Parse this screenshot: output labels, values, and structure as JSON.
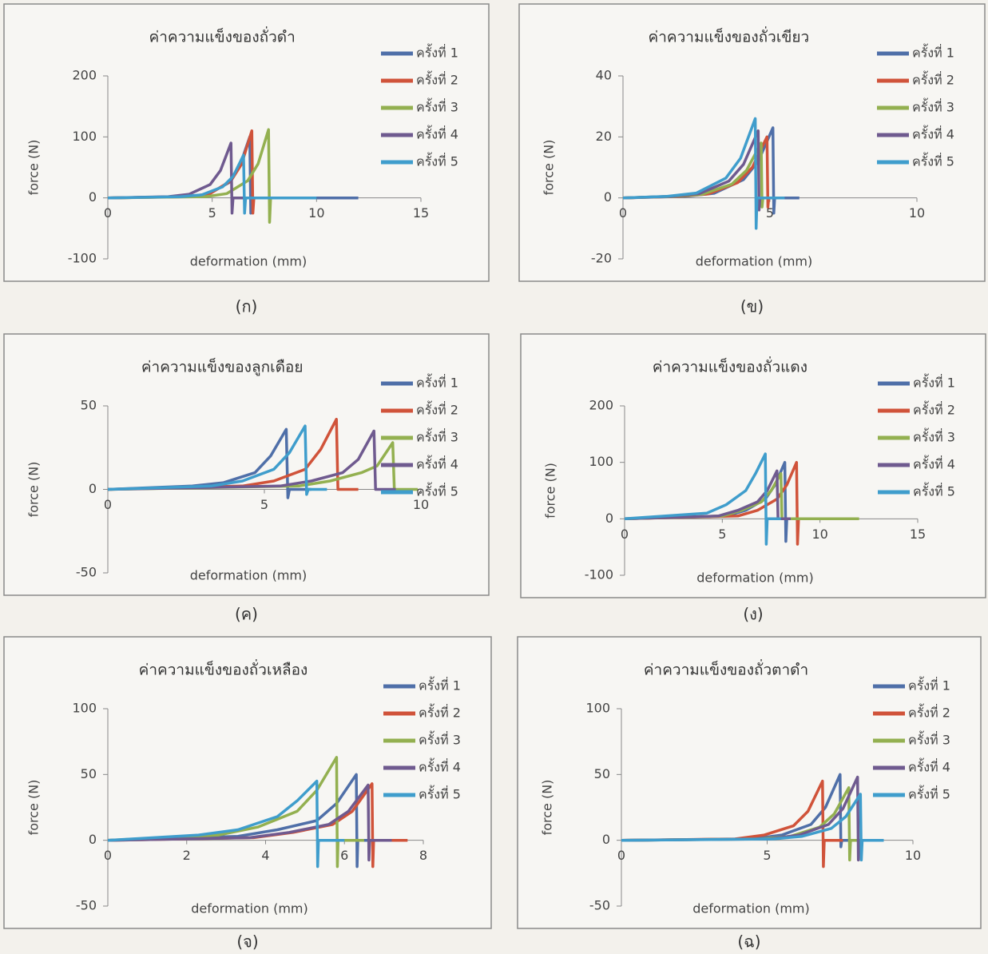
{
  "chart_data": [
    {
      "type": "line",
      "title": "ค่าความแข็งของถั่วดำ",
      "caption": "(ก)",
      "xlabel": "deformation (mm)",
      "ylabel": "force (N)",
      "xlim": [
        0,
        15
      ],
      "ylim": [
        -100,
        200
      ],
      "xticks": [
        0,
        5,
        10,
        15
      ],
      "yticks": [
        -100,
        0,
        100,
        200
      ],
      "series": [
        {
          "name": "ครั้งที่ 1",
          "color": "#4f6fa8",
          "x": [
            0,
            3.8,
            4.8,
            5.8,
            6.3,
            6.8,
            6.85,
            6.9,
            12
          ],
          "values": [
            0,
            2,
            6,
            25,
            50,
            100,
            -25,
            0,
            0
          ]
        },
        {
          "name": "ครั้งที่ 2",
          "color": "#d0533a",
          "x": [
            0,
            3.9,
            4.9,
            5.9,
            6.4,
            6.9,
            6.95,
            7.0,
            9
          ],
          "values": [
            0,
            2,
            7,
            28,
            55,
            110,
            -25,
            0,
            0
          ]
        },
        {
          "name": "ครั้งที่ 3",
          "color": "#93b050",
          "x": [
            0,
            4.7,
            5.7,
            6.7,
            7.2,
            7.7,
            7.75,
            7.8,
            8.5
          ],
          "values": [
            0,
            2,
            7,
            28,
            56,
            112,
            -40,
            0,
            0
          ]
        },
        {
          "name": "ครั้งที่ 4",
          "color": "#6f5a8f",
          "x": [
            0,
            2.9,
            3.9,
            4.9,
            5.4,
            5.9,
            5.95,
            6.0,
            7
          ],
          "values": [
            0,
            2,
            6,
            22,
            45,
            90,
            -25,
            0,
            0
          ]
        },
        {
          "name": "ครั้งที่ 5",
          "color": "#3f9dcc",
          "x": [
            0,
            3.5,
            4.5,
            5.5,
            6.0,
            6.5,
            6.55,
            6.6,
            10
          ],
          "values": [
            0,
            2,
            5,
            18,
            35,
            70,
            -25,
            0,
            0
          ]
        }
      ]
    },
    {
      "type": "line",
      "title": "ค่าความแข็งของถั่วเขียว",
      "caption": "(ข)",
      "xlabel": "deformation (mm)",
      "ylabel": "force (N)",
      "xlim": [
        0,
        10
      ],
      "ylim": [
        -20,
        40
      ],
      "xticks": [
        0,
        5,
        10
      ],
      "yticks": [
        -20,
        0,
        20,
        40
      ],
      "series": [
        {
          "name": "ครั้งที่ 1",
          "color": "#4f6fa8",
          "x": [
            0,
            2.1,
            3.1,
            4.1,
            4.6,
            5.1,
            5.13,
            5.16,
            6
          ],
          "values": [
            0,
            0.5,
            1.5,
            6,
            12,
            23,
            -5,
            0,
            0
          ]
        },
        {
          "name": "ครั้งที่ 2",
          "color": "#d0533a",
          "x": [
            0,
            1.9,
            2.9,
            3.9,
            4.4,
            4.9,
            4.93,
            4.96,
            5.5
          ],
          "values": [
            0,
            0.5,
            1.3,
            5,
            10,
            20,
            -3,
            0,
            0
          ]
        },
        {
          "name": "ครั้งที่ 3",
          "color": "#93b050",
          "x": [
            0,
            1.7,
            2.7,
            3.7,
            4.2,
            4.7,
            4.73,
            4.76,
            5.5
          ],
          "values": [
            0,
            0.5,
            1.2,
            4.5,
            9,
            18,
            -3,
            0,
            0
          ]
        },
        {
          "name": "ครั้งที่ 4",
          "color": "#6f5a8f",
          "x": [
            0,
            1.6,
            2.6,
            3.6,
            4.1,
            4.6,
            4.63,
            4.66,
            5.5
          ],
          "values": [
            0,
            0.5,
            1.4,
            5.5,
            11,
            22,
            -4,
            0,
            0
          ]
        },
        {
          "name": "ครั้งที่ 5",
          "color": "#3f9dcc",
          "x": [
            0,
            1.5,
            2.5,
            3.5,
            4.0,
            4.5,
            4.53,
            4.56,
            5.5
          ],
          "values": [
            0,
            0.5,
            1.6,
            6.5,
            13,
            26,
            -10,
            0,
            0
          ]
        }
      ]
    },
    {
      "type": "line",
      "title": "ค่าความแข็งของลูกเดือย",
      "caption": "(ค)",
      "xlabel": "deformation (mm)",
      "ylabel": "force (N)",
      "xlim": [
        0,
        10
      ],
      "ylim": [
        -50,
        50
      ],
      "xticks": [
        0,
        5,
        10
      ],
      "yticks": [
        -50,
        0,
        50
      ],
      "series": [
        {
          "name": "ครั้งที่ 1",
          "color": "#4f6fa8",
          "x": [
            0,
            2.7,
            3.7,
            4.7,
            5.2,
            5.7,
            5.75,
            5.8,
            6.5
          ],
          "values": [
            0,
            2,
            4,
            10,
            20,
            36,
            -5,
            0,
            0
          ]
        },
        {
          "name": "ครั้งที่ 2",
          "color": "#d0533a",
          "x": [
            0,
            4.3,
            5.3,
            6.3,
            6.8,
            7.3,
            7.35,
            7.4,
            8
          ],
          "values": [
            0,
            2,
            5,
            12,
            24,
            42,
            0,
            0,
            0
          ]
        },
        {
          "name": "ครั้งที่ 3",
          "color": "#93b050",
          "x": [
            0,
            6.1,
            7.1,
            8.1,
            8.6,
            9.1,
            9.15,
            9.2,
            9.9
          ],
          "values": [
            0,
            2,
            5,
            10,
            14,
            28,
            0,
            0,
            0
          ]
        },
        {
          "name": "ครั้งที่ 4",
          "color": "#6f5a8f",
          "x": [
            0,
            5.5,
            6.5,
            7.5,
            8.0,
            8.5,
            8.55,
            8.6,
            9.2
          ],
          "values": [
            0,
            2,
            5,
            10,
            18,
            35,
            0,
            0,
            0
          ]
        },
        {
          "name": "ครั้งที่ 5",
          "color": "#3f9dcc",
          "x": [
            0,
            3.3,
            4.3,
            5.3,
            5.8,
            6.3,
            6.35,
            6.4,
            7
          ],
          "values": [
            0,
            2,
            5,
            12,
            22,
            38,
            -3,
            0,
            0
          ]
        }
      ]
    },
    {
      "type": "line",
      "title": "ค่าความแข็งของถั่วแดง",
      "caption": "(ง)",
      "xlabel": "deformation (mm)",
      "ylabel": "force (N)",
      "xlim": [
        0,
        15
      ],
      "ylim": [
        -100,
        200
      ],
      "xticks": [
        0,
        5,
        10,
        15
      ],
      "yticks": [
        -100,
        0,
        100,
        200
      ],
      "series": [
        {
          "name": "ครั้งที่ 1",
          "color": "#4f6fa8",
          "x": [
            0,
            5.2,
            6.2,
            7.2,
            7.7,
            8.2,
            8.25,
            8.3,
            9
          ],
          "values": [
            0,
            5,
            15,
            35,
            60,
            100,
            -40,
            0,
            0
          ]
        },
        {
          "name": "ครั้งที่ 2",
          "color": "#d0533a",
          "x": [
            0,
            5.8,
            6.8,
            7.8,
            8.3,
            8.8,
            8.85,
            8.9,
            9.5
          ],
          "values": [
            0,
            5,
            15,
            35,
            60,
            100,
            -45,
            0,
            0
          ]
        },
        {
          "name": "ครั้งที่ 3",
          "color": "#93b050",
          "x": [
            0,
            5.0,
            6.0,
            7.0,
            7.5,
            8.0,
            8.05,
            8.1,
            12
          ],
          "values": [
            0,
            5,
            15,
            30,
            50,
            80,
            0,
            0,
            0
          ]
        },
        {
          "name": "ครั้งที่ 4",
          "color": "#6f5a8f",
          "x": [
            0,
            4.8,
            5.8,
            6.8,
            7.3,
            7.8,
            7.85,
            7.9,
            8.5
          ],
          "values": [
            0,
            5,
            15,
            30,
            50,
            85,
            0,
            0,
            0
          ]
        },
        {
          "name": "ครั้งที่ 5",
          "color": "#3f9dcc",
          "x": [
            0,
            4.2,
            5.2,
            6.2,
            6.7,
            7.2,
            7.25,
            7.3,
            8
          ],
          "values": [
            0,
            10,
            25,
            50,
            80,
            115,
            -45,
            0,
            0
          ]
        }
      ]
    },
    {
      "type": "line",
      "title": "ค่าความแข็งของถั่วเหลือง",
      "caption": "(จ)",
      "xlabel": "deformation (mm)",
      "ylabel": "force (N)",
      "xlim": [
        0,
        8
      ],
      "ylim": [
        -50,
        100
      ],
      "xticks": [
        0,
        2,
        4,
        6,
        8
      ],
      "yticks": [
        -50,
        0,
        50,
        100
      ],
      "series": [
        {
          "name": "ครั้งที่ 1",
          "color": "#4f6fa8",
          "x": [
            0,
            3.3,
            4.3,
            5.3,
            5.8,
            6.3,
            6.32,
            6.34,
            7
          ],
          "values": [
            0,
            3,
            8,
            15,
            28,
            50,
            -20,
            0,
            0
          ]
        },
        {
          "name": "ครั้งที่ 2",
          "color": "#d0533a",
          "x": [
            0,
            3.7,
            4.7,
            5.7,
            6.2,
            6.7,
            6.72,
            6.74,
            7.6
          ],
          "values": [
            0,
            2,
            6,
            12,
            22,
            43,
            -20,
            0,
            0
          ]
        },
        {
          "name": "ครั้งที่ 3",
          "color": "#93b050",
          "x": [
            0,
            2.8,
            3.8,
            4.8,
            5.3,
            5.8,
            5.82,
            5.84,
            6.5
          ],
          "values": [
            0,
            4,
            10,
            22,
            38,
            63,
            -20,
            0,
            0
          ]
        },
        {
          "name": "ครั้งที่ 4",
          "color": "#6f5a8f",
          "x": [
            0,
            3.6,
            4.6,
            5.6,
            6.1,
            6.6,
            6.62,
            6.64,
            7.2
          ],
          "values": [
            0,
            2,
            6,
            12,
            22,
            42,
            -15,
            0,
            0
          ]
        },
        {
          "name": "ครั้งที่ 5",
          "color": "#3f9dcc",
          "x": [
            0,
            2.3,
            3.3,
            4.3,
            4.8,
            5.3,
            5.32,
            5.34,
            6
          ],
          "values": [
            0,
            4,
            8,
            18,
            30,
            45,
            -20,
            0,
            0
          ]
        }
      ]
    },
    {
      "type": "line",
      "title": "ค่าความแข็งของถั่วตาดำ",
      "caption": "(ฉ)",
      "xlabel": "deformation (mm)",
      "ylabel": "force (N)",
      "xlim": [
        0,
        10
      ],
      "ylim": [
        -50,
        100
      ],
      "xticks": [
        0,
        5,
        10
      ],
      "yticks": [
        -50,
        0,
        50,
        100
      ],
      "series": [
        {
          "name": "ครั้งที่ 1",
          "color": "#4f6fa8",
          "x": [
            0,
            4.5,
            5.5,
            6.5,
            7.0,
            7.5,
            7.53,
            7.56,
            8.5
          ],
          "values": [
            0,
            1,
            4,
            12,
            25,
            50,
            -5,
            0,
            0
          ]
        },
        {
          "name": "ครั้งที่ 2",
          "color": "#d0533a",
          "x": [
            0,
            3.9,
            4.9,
            5.9,
            6.4,
            6.9,
            6.93,
            6.96,
            7.6
          ],
          "values": [
            0,
            1,
            4,
            11,
            22,
            45,
            -20,
            0,
            0
          ]
        },
        {
          "name": "ครั้งที่ 3",
          "color": "#93b050",
          "x": [
            0,
            4.8,
            5.8,
            6.8,
            7.3,
            7.8,
            7.83,
            7.86,
            8.5
          ],
          "values": [
            0,
            1,
            3,
            10,
            20,
            40,
            -15,
            0,
            0
          ]
        },
        {
          "name": "ครั้งที่ 4",
          "color": "#6f5a8f",
          "x": [
            0,
            5.1,
            6.1,
            7.1,
            7.6,
            8.1,
            8.13,
            8.16,
            8.8
          ],
          "values": [
            0,
            1,
            4,
            12,
            24,
            48,
            -15,
            0,
            0
          ]
        },
        {
          "name": "ครั้งที่ 5",
          "color": "#3f9dcc",
          "x": [
            0,
            5.2,
            6.2,
            7.2,
            7.7,
            8.2,
            8.23,
            8.26,
            9
          ],
          "values": [
            0,
            1,
            3,
            9,
            18,
            35,
            -15,
            0,
            0
          ]
        }
      ]
    }
  ]
}
